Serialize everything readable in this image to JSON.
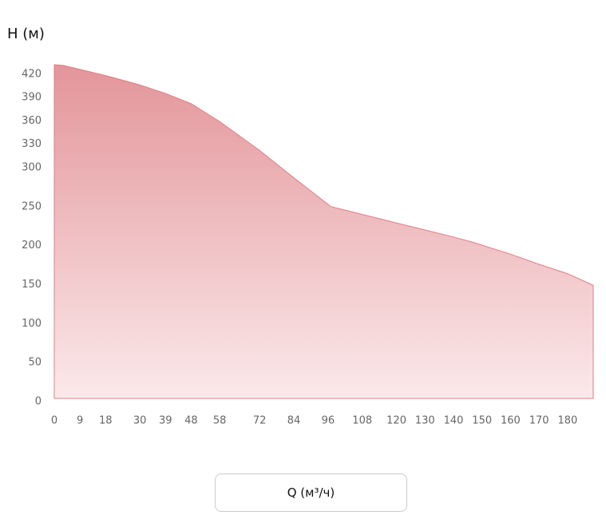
{
  "chart_data": {
    "type": "area",
    "title": "H (м)",
    "x_label": "Q (м³/ч)",
    "x": [
      0,
      3,
      9,
      18,
      30,
      39,
      48,
      58,
      72,
      84,
      97,
      108,
      120,
      130,
      140,
      147,
      160,
      170,
      180,
      189
    ],
    "values": [
      428,
      427,
      422,
      414,
      402,
      391,
      378,
      355,
      318,
      283,
      246,
      236,
      225,
      216,
      207,
      200,
      185,
      172,
      160,
      145
    ],
    "color": "#e3959a",
    "xlim": [
      0,
      189
    ],
    "xticks": [
      0,
      9,
      18,
      30,
      39,
      48,
      58,
      72,
      84,
      96,
      108,
      120,
      130,
      140,
      150,
      160,
      170,
      180
    ],
    "ylim": [
      0,
      430
    ],
    "yticks": [
      0,
      50,
      100,
      150,
      200,
      250,
      300,
      330,
      360,
      390,
      420
    ]
  }
}
